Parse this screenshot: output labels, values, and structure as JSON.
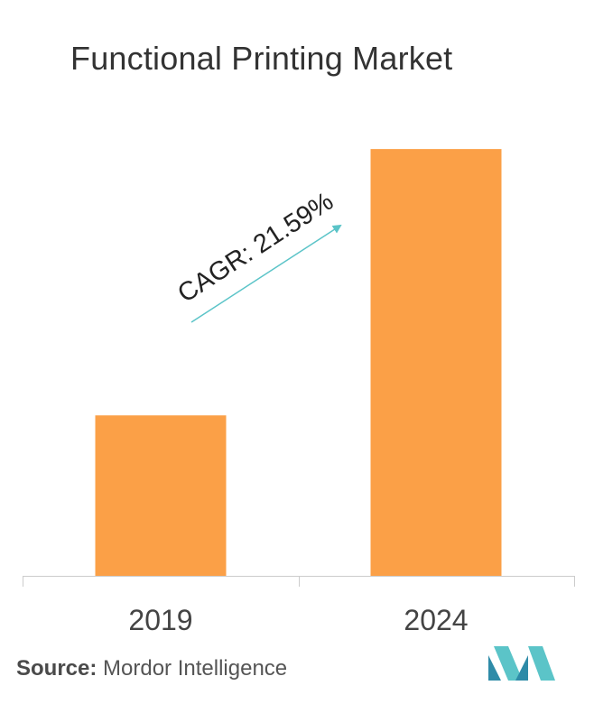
{
  "chart_data": {
    "type": "bar",
    "title": "Functional Printing Market",
    "categories": [
      "2019",
      "2024"
    ],
    "values": [
      1,
      2.66
    ],
    "ylim": [
      0,
      2.7
    ],
    "xlabel": "",
    "ylabel": "",
    "grid": false,
    "bar_color": "#FBA047",
    "axis_color": "#cccccc",
    "annotation": {
      "text": "CAGR: 21.59%",
      "arrow_color": "#5BC4C8"
    }
  },
  "source": {
    "label": "Source:",
    "text": "Mordor Intelligence"
  },
  "logo": {
    "icon": "mordor-intelligence-logo",
    "colors": [
      "#2E8BA8",
      "#5BC4C8"
    ]
  }
}
